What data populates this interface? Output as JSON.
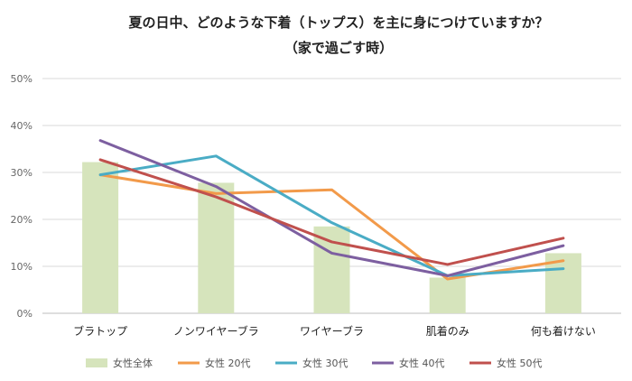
{
  "chart_data": {
    "type": "bar",
    "title": "夏の日中、どのような下着（トップス）を主に身につけていますか？",
    "subtitle": "（家で過ごす時）",
    "categories": [
      "ブラトップ",
      "ノンワイヤーブラ",
      "ワイヤーブラ",
      "肌着のみ",
      "何も着けない"
    ],
    "y_ticks": [
      "0%",
      "10%",
      "20%",
      "30%",
      "40%",
      "50%"
    ],
    "ylim": [
      0,
      50
    ],
    "grid": true,
    "legend_position": "bottom",
    "series": [
      {
        "name": "女性全体",
        "kind": "bar",
        "color": "#d6e4bc",
        "values": [
          32.2,
          27.8,
          18.5,
          7.6,
          12.8
        ]
      },
      {
        "name": "女性 20代",
        "kind": "line",
        "color": "#f29a4a",
        "values": [
          29.5,
          25.5,
          26.3,
          7.3,
          11.2
        ]
      },
      {
        "name": "女性 30代",
        "kind": "line",
        "color": "#4aacc5",
        "values": [
          29.5,
          33.5,
          19.3,
          8.0,
          9.5
        ]
      },
      {
        "name": "女性 40代",
        "kind": "line",
        "color": "#7d5fa0",
        "values": [
          36.8,
          27.0,
          12.8,
          8.0,
          14.4
        ]
      },
      {
        "name": "女性 50代",
        "kind": "line",
        "color": "#c0504d",
        "values": [
          32.7,
          24.8,
          15.2,
          10.4,
          16.0
        ]
      }
    ]
  }
}
